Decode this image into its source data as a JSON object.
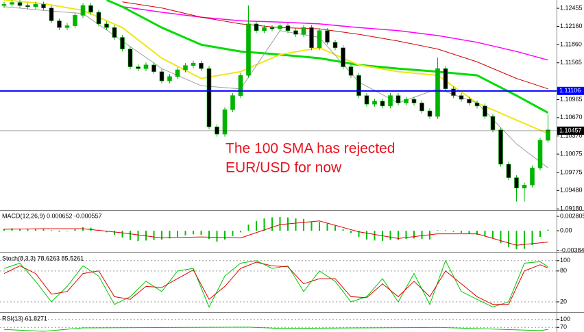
{
  "chart_data": [
    {
      "type": "candlestick",
      "open": [
        1.125,
        1.1252,
        1.1255,
        1.125,
        1.1248,
        1.1252,
        1.1246,
        1.1225,
        1.1214,
        1.1217,
        1.1234,
        1.125,
        1.1239,
        1.122,
        1.1214,
        1.1198,
        1.1179,
        1.115,
        1.1147,
        1.1153,
        1.1142,
        1.1127,
        1.1134,
        1.1145,
        1.1152,
        1.1156,
        1.1147,
        1.1052,
        1.104,
        1.108,
        1.1103,
        1.1136,
        1.122,
        1.1209,
        1.1214,
        1.1212,
        1.1217,
        1.1209,
        1.1203,
        1.1214,
        1.1181,
        1.1209,
        1.119,
        1.1181,
        1.115,
        1.1136,
        1.1103,
        1.1089,
        1.1094,
        1.1086,
        1.1103,
        1.1091,
        1.1097,
        1.1091,
        1.1078,
        1.1069,
        1.1147,
        1.1114,
        1.1103,
        1.1097,
        1.1091,
        1.1086,
        1.1069,
        1.1047,
        1.0991,
        1.0969,
        1.0952,
        1.0957,
        1.0985,
        1.103
      ],
      "high": [
        1.1256,
        1.1259,
        1.1259,
        1.1254,
        1.1256,
        1.1256,
        1.125,
        1.1229,
        1.1221,
        1.1238,
        1.1254,
        1.1254,
        1.1243,
        1.1224,
        1.1218,
        1.1202,
        1.1183,
        1.1154,
        1.1157,
        1.1157,
        1.1146,
        1.1138,
        1.1149,
        1.1156,
        1.116,
        1.116,
        1.1151,
        1.1056,
        1.1084,
        1.1107,
        1.114,
        1.125,
        1.1224,
        1.1218,
        1.1218,
        1.1221,
        1.1221,
        1.1213,
        1.1218,
        1.1218,
        1.1213,
        1.1213,
        1.1194,
        1.1185,
        1.1154,
        1.114,
        1.1107,
        1.1098,
        1.1098,
        1.1107,
        1.1107,
        1.1101,
        1.1101,
        1.1095,
        1.1082,
        1.1165,
        1.1151,
        1.1118,
        1.1107,
        1.1101,
        1.1095,
        1.109,
        1.1073,
        1.1051,
        1.0995,
        1.0973,
        1.0961,
        1.0989,
        1.1034,
        1.1072
      ],
      "low": [
        1.1246,
        1.1248,
        1.1246,
        1.1244,
        1.1244,
        1.1242,
        1.1221,
        1.121,
        1.121,
        1.1213,
        1.123,
        1.1235,
        1.1216,
        1.121,
        1.1194,
        1.1175,
        1.1146,
        1.1143,
        1.1143,
        1.1138,
        1.1123,
        1.1123,
        1.113,
        1.1141,
        1.1148,
        1.1143,
        1.1048,
        1.1036,
        1.1036,
        1.1076,
        1.1099,
        1.1132,
        1.1205,
        1.1205,
        1.1208,
        1.1208,
        1.1205,
        1.1199,
        1.1199,
        1.1177,
        1.1177,
        1.1186,
        1.1177,
        1.1146,
        1.1132,
        1.1099,
        1.1085,
        1.1085,
        1.1082,
        1.1082,
        1.1087,
        1.1087,
        1.1087,
        1.1074,
        1.1065,
        1.1065,
        1.111,
        1.1099,
        1.1093,
        1.1087,
        1.1082,
        1.1065,
        1.1043,
        1.0987,
        1.0965,
        1.093,
        1.093,
        1.0953,
        1.0981,
        1.1026
      ],
      "close": [
        1.1252,
        1.1255,
        1.125,
        1.1248,
        1.1252,
        1.1246,
        1.1225,
        1.1214,
        1.1217,
        1.1234,
        1.125,
        1.1239,
        1.122,
        1.1214,
        1.1198,
        1.1179,
        1.115,
        1.1147,
        1.1153,
        1.1142,
        1.1127,
        1.1134,
        1.1145,
        1.1152,
        1.1156,
        1.1147,
        1.1052,
        1.104,
        1.108,
        1.1103,
        1.1136,
        1.122,
        1.1209,
        1.1214,
        1.1212,
        1.1217,
        1.1209,
        1.1203,
        1.1214,
        1.1181,
        1.1209,
        1.119,
        1.1181,
        1.115,
        1.1136,
        1.1103,
        1.1089,
        1.1094,
        1.1086,
        1.1103,
        1.1091,
        1.1097,
        1.1091,
        1.1078,
        1.1069,
        1.1147,
        1.1114,
        1.1103,
        1.1097,
        1.1091,
        1.1086,
        1.1069,
        1.1047,
        1.0991,
        1.0969,
        1.0952,
        1.0957,
        1.0985,
        1.103,
        1.1047
      ],
      "up_color": "#00b400",
      "down_color": "#000000",
      "wick_color": "#00b400",
      "overlays": [
        {
          "color": "#ff00ff",
          "line_width": 1.5,
          "x": [
            15,
            20,
            25,
            30,
            35,
            40,
            45,
            50,
            55,
            60,
            65,
            69
          ],
          "values": [
            1.1248,
            1.1239,
            1.1231,
            1.1225,
            1.1223,
            1.122,
            1.1214,
            1.1209,
            1.1201,
            1.119,
            1.1175,
            1.1161
          ]
        },
        {
          "color": "#d00000",
          "line_width": 1,
          "x": [
            15,
            20,
            25,
            30,
            35,
            40,
            45,
            50,
            55,
            60,
            65,
            69
          ],
          "values": [
            1.1256,
            1.1246,
            1.1231,
            1.122,
            1.1214,
            1.1212,
            1.1203,
            1.1192,
            1.1179,
            1.1158,
            1.1131,
            1.1114
          ]
        },
        {
          "color": "#00dc00",
          "line_width": 3,
          "x": [
            13,
            15,
            20,
            25,
            30,
            35,
            40,
            45,
            50,
            55,
            60,
            65,
            69
          ],
          "values": [
            1.1259,
            1.1248,
            1.1214,
            1.1186,
            1.1175,
            1.117,
            1.1164,
            1.1153,
            1.1147,
            1.1142,
            1.1136,
            1.1103,
            1.1075
          ]
        },
        {
          "color": "#f0e614",
          "line_width": 2,
          "x": [
            0,
            5,
            10,
            15,
            20,
            25,
            30,
            35,
            40,
            45,
            50,
            55,
            60,
            65,
            69
          ],
          "values": [
            1.1259,
            1.1253,
            1.1242,
            1.1214,
            1.1164,
            1.1131,
            1.1142,
            1.117,
            1.1181,
            1.1153,
            1.1142,
            1.1136,
            1.1091,
            1.1063,
            1.1041
          ]
        },
        {
          "color": "#a0a0a0",
          "line_width": 1,
          "x": [
            0,
            5,
            10,
            15,
            20,
            25,
            30,
            35,
            40,
            45,
            50,
            55,
            60,
            65,
            69
          ],
          "values": [
            1.1248,
            1.1242,
            1.1237,
            1.1192,
            1.1147,
            1.1119,
            1.1114,
            1.1209,
            1.1198,
            1.1125,
            1.1091,
            1.1114,
            1.1091,
            1.1024,
            1.0985
          ]
        }
      ],
      "levels": [
        {
          "value": 1.11106,
          "color": "#0000ff"
        },
        {
          "value": 1.10457,
          "color": "#000000"
        }
      ],
      "ylim": [
        1.0916,
        1.1259
      ],
      "yticks": [
        1.12455,
        {
          "value": 1.1216,
          "label": "1.12160"
        },
        {
          "value": 1.1186,
          "label": "1.11860"
        },
        1.11565,
        1.10965,
        {
          "value": 1.1067,
          "label": "1.10670"
        },
        {
          "value": 1.1037,
          "label": "1.10370"
        },
        1.10075,
        1.09775,
        {
          "value": 1.0948,
          "label": "1.09480"
        },
        {
          "value": 1.0918,
          "label": "1.09180"
        }
      ],
      "annotation": [
        "The 100 SMA has rejected",
        "EUR/USD for now"
      ],
      "annotation_color": "#e8141e"
    },
    {
      "type": "macd",
      "title": "MACD(12,26,9) 0.000652 -0.000557",
      "values": [
        0.0004,
        0.0005,
        0.0004,
        0.0003,
        0.0004,
        0.0003,
        0.0001,
        -0.0002,
        -0.0001,
        0.0003,
        0.0007,
        0.0006,
        0.0002,
        -0.0003,
        -0.0008,
        -0.0013,
        -0.0018,
        -0.002,
        -0.0019,
        -0.0018,
        -0.0017,
        -0.0015,
        -0.0012,
        -0.0009,
        -0.0007,
        -0.0008,
        -0.0016,
        -0.0021,
        -0.0017,
        -0.001,
        -0.0003,
        0.0012,
        0.0019,
        0.0024,
        0.0026,
        0.0027,
        0.0026,
        0.0024,
        0.0023,
        0.0018,
        0.0017,
        0.0014,
        0.001,
        0.0003,
        -0.0004,
        -0.0012,
        -0.0017,
        -0.0019,
        -0.002,
        -0.0018,
        -0.0018,
        -0.0016,
        -0.0015,
        -0.0016,
        -0.0017,
        0.0001,
        0.0001,
        -0.0002,
        -0.0004,
        -0.0006,
        -0.0008,
        -0.0011,
        -0.0015,
        -0.0024,
        -0.0032,
        -0.0036,
        -0.0035,
        -0.0028,
        -0.0012,
        0.0002
      ],
      "color": "#00c000",
      "signal": {
        "color": "#e00000",
        "x": [
          0,
          5,
          10,
          15,
          20,
          25,
          30,
          35,
          40,
          45,
          50,
          55,
          60,
          65,
          69
        ],
        "values": [
          0.0003,
          0.0004,
          0.0004,
          -0.0004,
          -0.0014,
          -0.0012,
          -0.0014,
          0.0012,
          0.0019,
          -0.0002,
          -0.0015,
          -0.0006,
          -0.0006,
          -0.0028,
          -0.0022
        ]
      },
      "ylim": [
        -0.00411,
        0.00374
      ],
      "yticks": [
        0.002805,
        {
          "value": 0,
          "label": "0.00"
        },
        -0.003845
      ]
    },
    {
      "type": "line",
      "title": "Stoch(8,3,3) 78.6263 85.5261",
      "series": [
        {
          "color": "#00c800",
          "x": [
            0,
            2,
            4,
            6,
            8,
            10,
            12,
            14,
            16,
            18,
            20,
            22,
            24,
            26,
            28,
            30,
            32,
            34,
            36,
            38,
            40,
            42,
            44,
            46,
            48,
            50,
            52,
            54,
            56,
            58,
            60,
            62,
            64,
            66,
            68,
            69
          ],
          "values": [
            85,
            95,
            60,
            20,
            50,
            90,
            70,
            15,
            30,
            60,
            40,
            80,
            85,
            10,
            70,
            95,
            100,
            85,
            90,
            40,
            80,
            60,
            20,
            30,
            65,
            20,
            75,
            15,
            100,
            40,
            25,
            10,
            20,
            95,
            98,
            88
          ]
        },
        {
          "color": "#e00000",
          "x": [
            0,
            2,
            4,
            6,
            8,
            10,
            12,
            14,
            16,
            18,
            20,
            22,
            24,
            26,
            28,
            30,
            32,
            34,
            36,
            38,
            40,
            42,
            44,
            46,
            48,
            50,
            52,
            54,
            56,
            58,
            60,
            62,
            64,
            66,
            68,
            69
          ],
          "values": [
            75,
            90,
            75,
            35,
            40,
            75,
            80,
            30,
            25,
            50,
            48,
            65,
            82,
            25,
            50,
            85,
            97,
            90,
            88,
            55,
            65,
            65,
            30,
            28,
            55,
            30,
            60,
            30,
            80,
            55,
            30,
            15,
            15,
            80,
            92,
            86
          ]
        }
      ],
      "ylim": [
        0,
        113
      ],
      "yticks": [
        100,
        80,
        20
      ],
      "grid": true
    },
    {
      "type": "line",
      "title": "RSI(13) 61.8271",
      "series": [
        {
          "color": "#00c800",
          "x": [
            0,
            5,
            10,
            31,
            35,
            55,
            68,
            69
          ],
          "values": [
            62,
            55,
            68,
            71,
            66,
            70,
            58,
            62
          ]
        }
      ],
      "ylim": [
        52.5,
        120
      ],
      "yticks": [
        100,
        70
      ],
      "grid": true
    }
  ]
}
